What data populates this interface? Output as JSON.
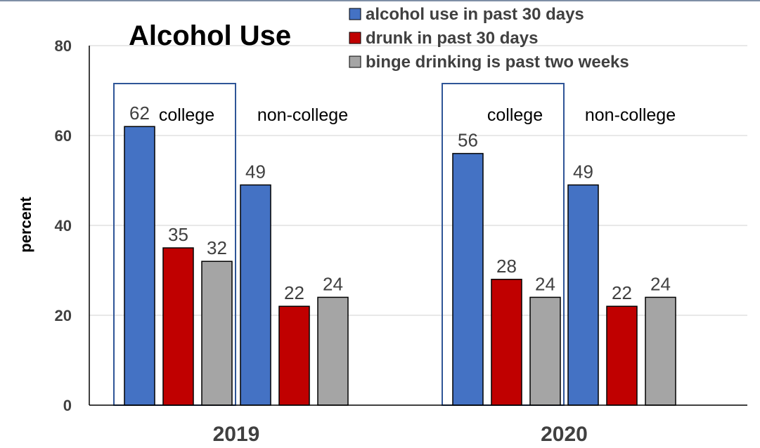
{
  "chart_data": {
    "type": "bar",
    "title": "Alcohol Use",
    "ylabel": "percent",
    "ylim": [
      0,
      80
    ],
    "yticks": [
      0,
      20,
      40,
      60,
      80
    ],
    "grid": true,
    "legend_position": "top-right",
    "categories": [
      "2019",
      "2020"
    ],
    "subgroups": [
      "college",
      "non-college"
    ],
    "series": [
      {
        "name": "alcohol use in past 30 days",
        "color": "#4472c4",
        "values": [
          [
            62,
            49
          ],
          [
            56,
            49
          ]
        ]
      },
      {
        "name": "drunk in past 30 days",
        "color": "#c00000",
        "values": [
          [
            35,
            22
          ],
          [
            28,
            22
          ]
        ]
      },
      {
        "name": "binge drinking is past two weeks",
        "color": "#a5a5a5",
        "values": [
          [
            32,
            24
          ],
          [
            24,
            24
          ]
        ]
      }
    ],
    "highlight_box_color": "#2f5597",
    "highlighted_subgroup": "college"
  }
}
